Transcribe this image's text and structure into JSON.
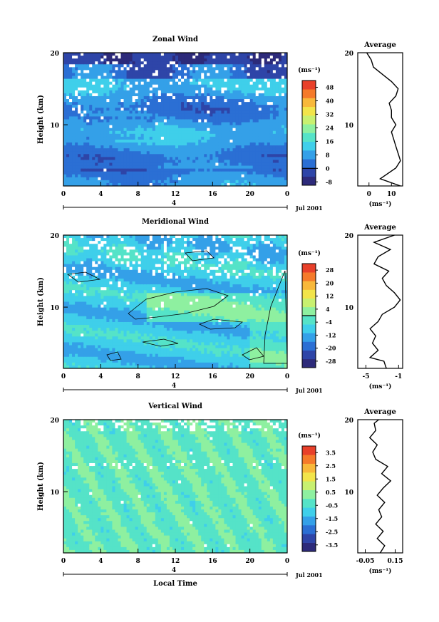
{
  "figure": {
    "x_axis_title": "Local Time",
    "date_label": "Jul 2001",
    "day_marker": "4"
  },
  "chart_data": [
    {
      "type": "heatmap",
      "id": "zonal",
      "title": "Zonal Wind",
      "ylabel": "Height (km)",
      "xlabel": "Local Time",
      "x_ticks": [
        "0",
        "4",
        "8",
        "12",
        "16",
        "20",
        "0"
      ],
      "xlim": [
        0,
        24
      ],
      "y_ticks": [
        "20",
        "10"
      ],
      "ylim": [
        1.5,
        20
      ],
      "colorbar": {
        "unit": "(ms⁻¹)",
        "ticks": [
          "48",
          "40",
          "32",
          "24",
          "16",
          "8",
          "0",
          "-8"
        ],
        "range": [
          -10,
          52
        ],
        "zero_line": 0
      },
      "average_profile": {
        "title": "Average",
        "xlabel": "(ms⁻¹)",
        "x_ticks": [
          "0",
          "10"
        ],
        "xlim": [
          -5,
          15
        ],
        "y_ticks": [
          "20",
          "10"
        ],
        "height_km": [
          1.5,
          2.5,
          4,
          5,
          6,
          7,
          8,
          9,
          10,
          11,
          12,
          13,
          14,
          15,
          16,
          17,
          18,
          19,
          20
        ],
        "wind_ms": [
          14,
          5,
          12,
          14,
          13,
          12,
          11,
          10,
          12,
          10,
          10,
          9,
          12,
          13,
          10,
          6,
          2,
          1,
          -1
        ]
      }
    },
    {
      "type": "heatmap",
      "id": "meridional",
      "title": "Meridional Wind",
      "ylabel": "Height (km)",
      "xlabel": "Local Time",
      "x_ticks": [
        "0",
        "4",
        "8",
        "12",
        "16",
        "20",
        "0"
      ],
      "xlim": [
        0,
        24
      ],
      "y_ticks": [
        "20",
        "10"
      ],
      "ylim": [
        1.5,
        20
      ],
      "colorbar": {
        "unit": "(ms⁻¹)",
        "ticks": [
          "28",
          "20",
          "12",
          "4",
          "-4",
          "-12",
          "-20",
          "-28"
        ],
        "range": [
          -32,
          32
        ],
        "zero_line": 0
      },
      "average_profile": {
        "title": "Average",
        "xlabel": "(ms⁻¹)",
        "x_ticks": [
          "-5",
          "-1"
        ],
        "xlim": [
          -6,
          -0.5
        ],
        "y_ticks": [
          "20",
          "10"
        ],
        "height_km": [
          1.5,
          2.5,
          3,
          4,
          5,
          6,
          7,
          8,
          9,
          10,
          11,
          12,
          13,
          14,
          15,
          16,
          17,
          18,
          19,
          20
        ],
        "wind_ms": [
          -2.5,
          -2.8,
          -4.5,
          -3.5,
          -4.2,
          -3.8,
          -4.5,
          -3.5,
          -3.0,
          -1.5,
          -0.8,
          -1.5,
          -2.5,
          -3.0,
          -2.2,
          -4.0,
          -3.5,
          -2.0,
          -4.0,
          -1.5
        ]
      }
    },
    {
      "type": "heatmap",
      "id": "vertical",
      "title": "Vertical Wind",
      "ylabel": "Height (km)",
      "xlabel": "Local Time",
      "x_ticks": [
        "0",
        "4",
        "8",
        "12",
        "16",
        "20",
        "0"
      ],
      "xlim": [
        0,
        24
      ],
      "y_ticks": [
        "20",
        "10"
      ],
      "ylim": [
        1.5,
        20
      ],
      "colorbar": {
        "unit": "(ms⁻¹)",
        "ticks": [
          "3.5",
          "2.5",
          "1.5",
          "0.5",
          "-0.5",
          "-1.5",
          "-2.5",
          "-3.5"
        ],
        "range": [
          -4,
          4
        ]
      },
      "average_profile": {
        "title": "Average",
        "xlabel": "(ms⁻¹)",
        "x_ticks": [
          "-0.05",
          "0.15"
        ],
        "xlim": [
          -0.1,
          0.2
        ],
        "y_ticks": [
          "20",
          "10"
        ],
        "height_km": [
          1.5,
          2.5,
          3.5,
          4.5,
          5.5,
          6.5,
          7.5,
          8.5,
          9.5,
          10.5,
          11.5,
          12.5,
          13.5,
          14.5,
          15.5,
          16.5,
          17.5,
          18.5,
          19.5,
          20
        ],
        "wind_ms": [
          0.05,
          0.08,
          0.03,
          0.07,
          0.02,
          0.06,
          0.04,
          0.08,
          0.03,
          0.07,
          0.12,
          0.06,
          0.1,
          0.02,
          0.0,
          0.03,
          -0.02,
          0.02,
          0.01,
          0.04
        ]
      }
    }
  ]
}
